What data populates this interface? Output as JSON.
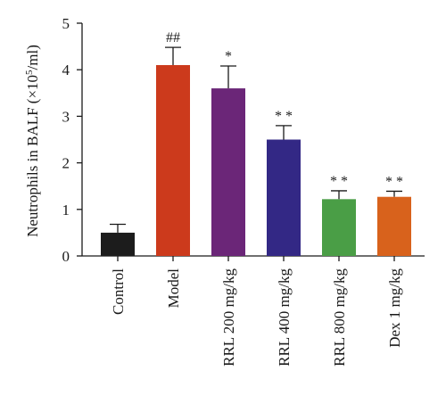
{
  "chart_data": {
    "type": "bar",
    "title": "",
    "ylabel": "Neutrophils in BALF (×10⁵/ml)",
    "ylabel_parts": {
      "before": "Neutrophils in BALF (×10",
      "sup": "5",
      "after": "/ml)"
    },
    "xlabel": "",
    "ylim": [
      0,
      5
    ],
    "yticks": [
      "0",
      "1",
      "2",
      "3",
      "4",
      "5"
    ],
    "grid": false,
    "categories": [
      "Control",
      "Model",
      "RRL 200 mg/kg",
      "RRL 400 mg/kg",
      "RRL 800 mg/kg",
      "Dex 1 mg/kg"
    ],
    "values": [
      0.5,
      4.1,
      3.6,
      2.5,
      1.22,
      1.27
    ],
    "errors": [
      0.18,
      0.38,
      0.48,
      0.3,
      0.18,
      0.12
    ],
    "annotations": [
      "",
      "##",
      "*",
      "* *",
      "* *",
      "* *"
    ],
    "colors": [
      "#1c1c1c",
      "#cc3a1c",
      "#6b2678",
      "#332885",
      "#4a9e46",
      "#d8621c"
    ]
  }
}
